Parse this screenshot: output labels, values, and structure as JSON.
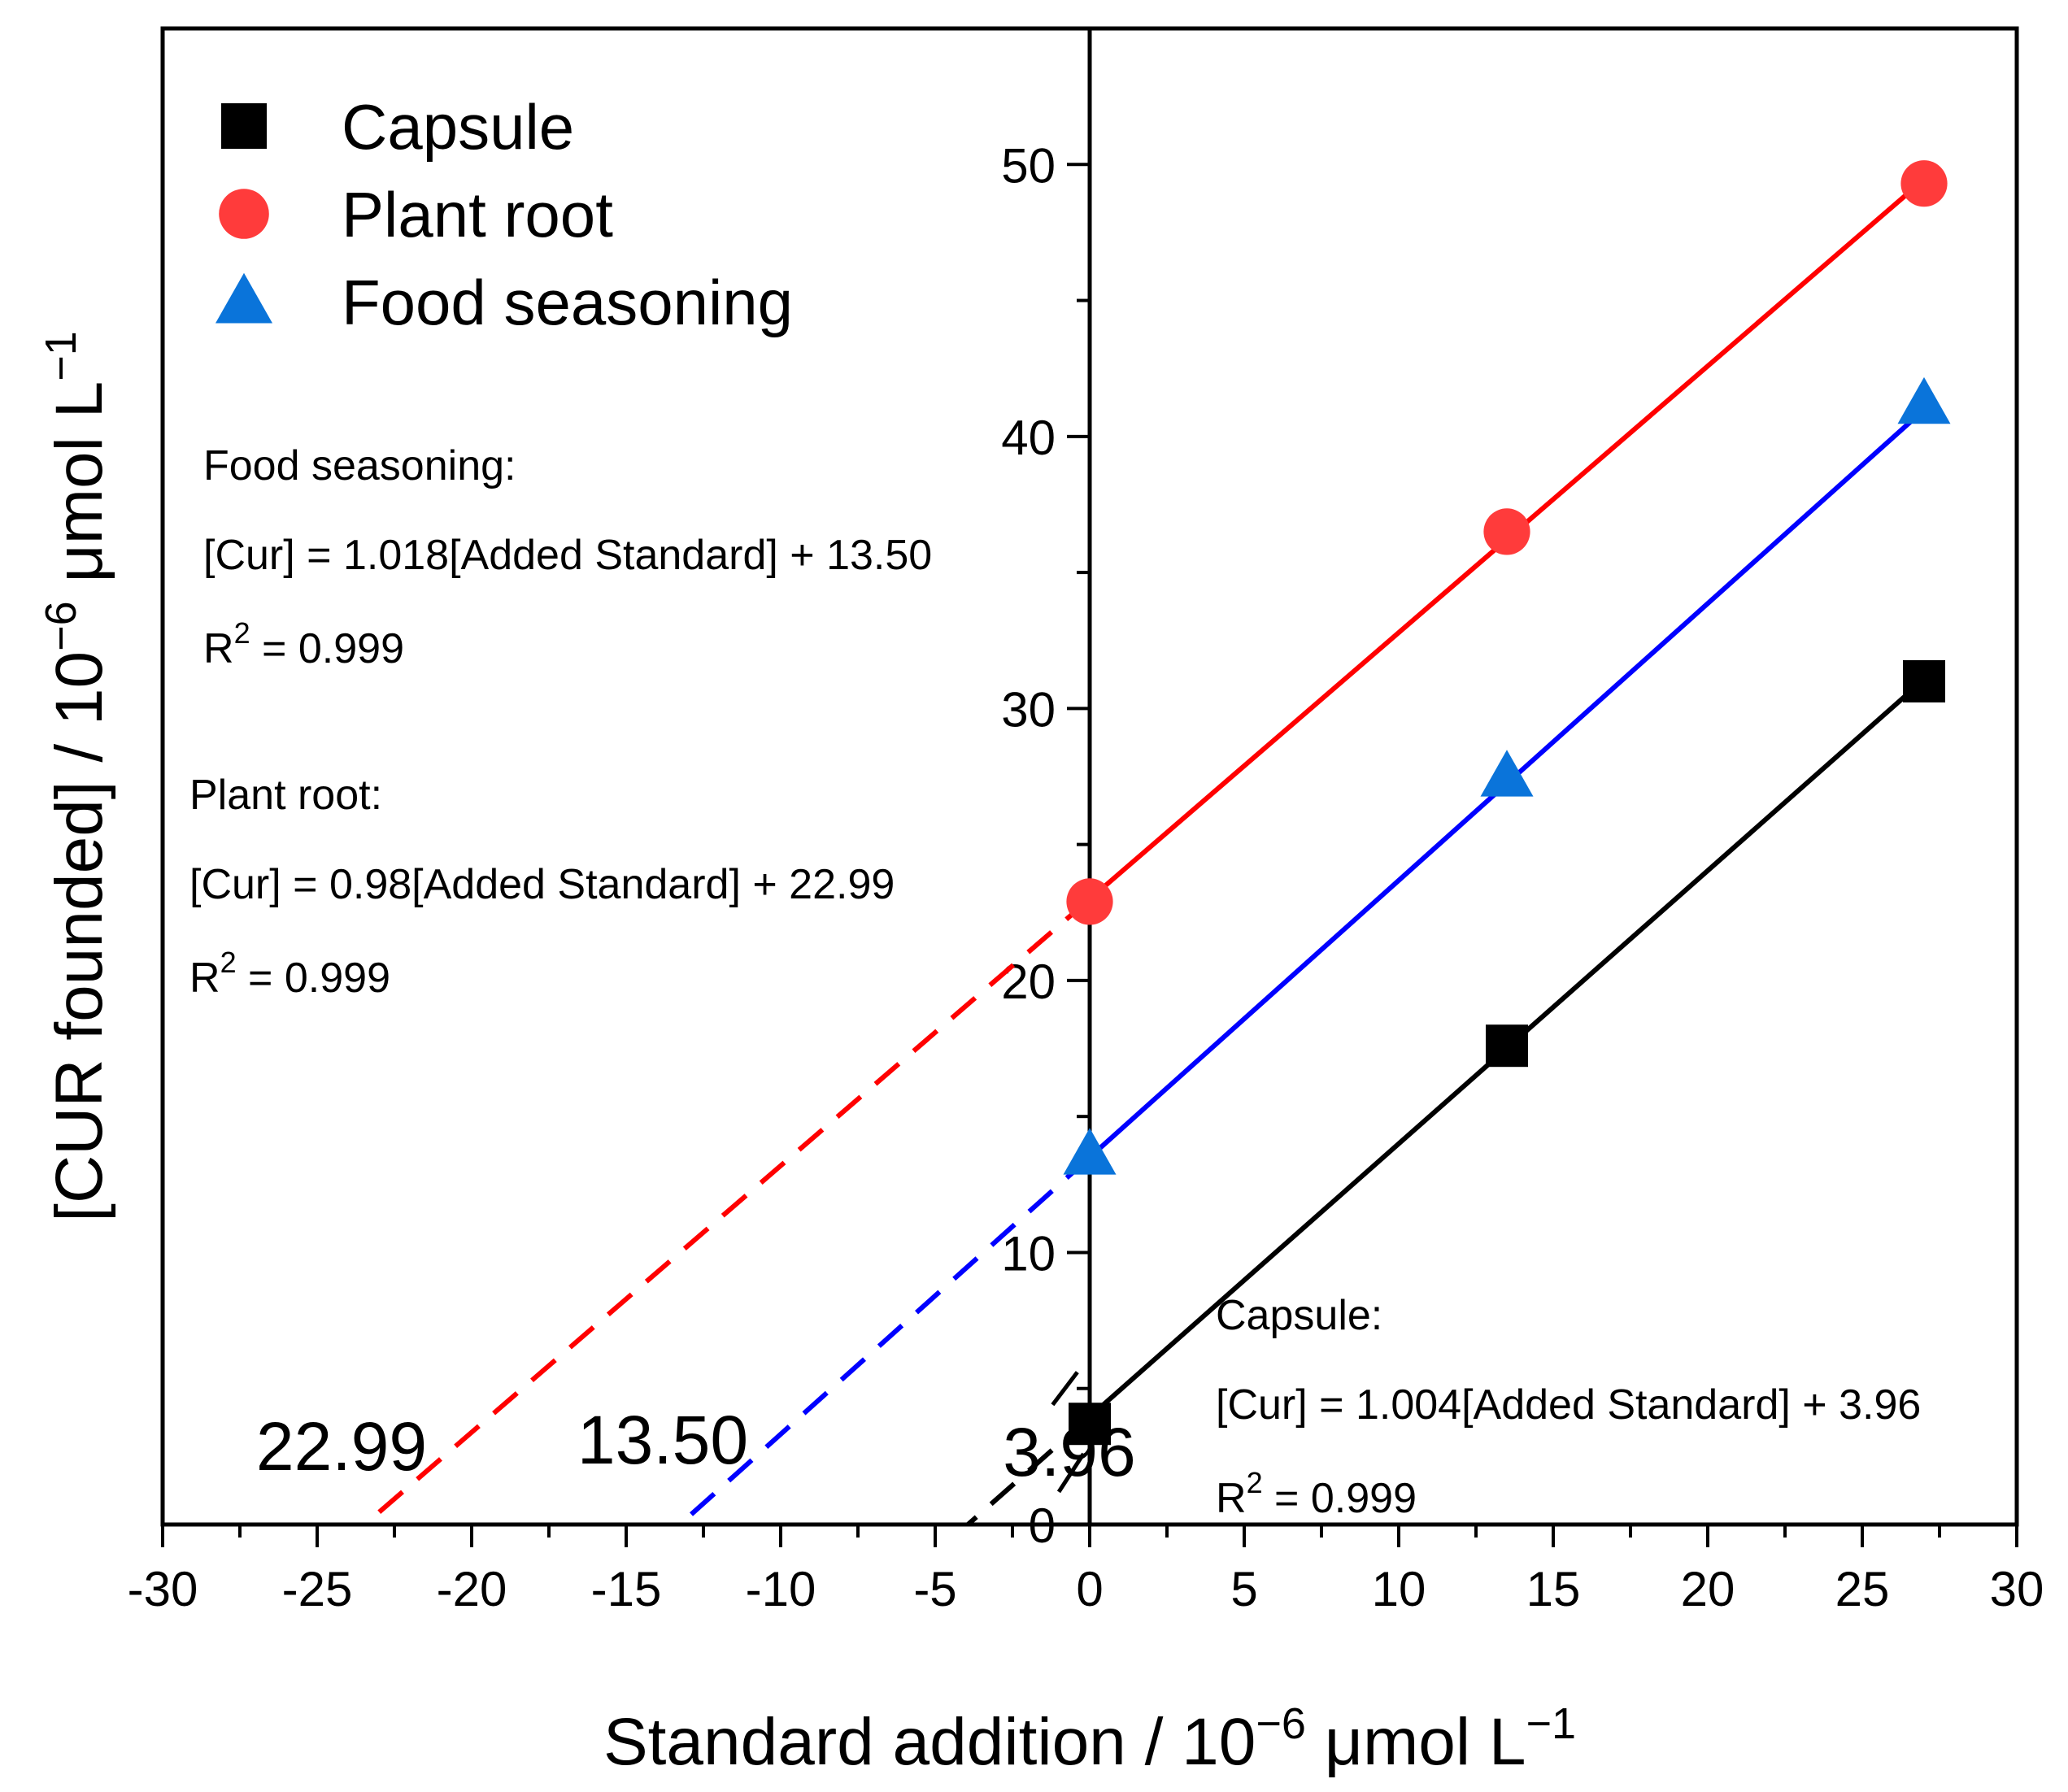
{
  "chart_data": {
    "type": "scatter",
    "xlabel": "Standard addition / 10",
    "xlabel_sup": "−6",
    "xlabel_unit": " μmol L",
    "xlabel_unit_sup": "−1",
    "ylabel": "[CUR founded] / 10",
    "ylabel_sup": "−6",
    "ylabel_unit": " μmol L",
    "ylabel_unit_sup": "−1",
    "xlim": [
      -30,
      30
    ],
    "ylim": [
      0,
      55
    ],
    "x_ticks": [
      -30,
      -25,
      -20,
      -15,
      -10,
      -5,
      0,
      5,
      10,
      15,
      20,
      25,
      30
    ],
    "x_tick_labels": [
      "-30",
      "-25",
      "-20",
      "-15",
      "-10",
      "-5",
      "0",
      "5",
      "10",
      "15",
      "20",
      "25",
      "30"
    ],
    "y_ticks": [
      0,
      10,
      20,
      30,
      40,
      50
    ],
    "y_tick_labels": [
      "0",
      "10",
      "20",
      "30",
      "40",
      "50"
    ],
    "grid": false,
    "legend_position": "top-left",
    "series": [
      {
        "name": "Capsule",
        "marker": "square",
        "color": "#000000",
        "line_color": "#000000",
        "x": [
          0,
          13.5,
          27
        ],
        "y": [
          3.7,
          17.6,
          31.0
        ],
        "fit": {
          "slope": 1.004,
          "intercept": 3.96
        },
        "extrapolate_to_x": -3.94,
        "intercept_label": "3.96",
        "equation": {
          "title": "Capsule:",
          "formula": "[Cur] = 1.004[Added Standard] + 3.96",
          "r2_prefix": "R",
          "r2_sup": "2",
          "r2_value": " = 0.999"
        }
      },
      {
        "name": "Plant root",
        "marker": "circle",
        "color": "#ff3b3b",
        "line_color": "#ff0000",
        "x": [
          0,
          13.5,
          27
        ],
        "y": [
          22.9,
          36.5,
          49.3
        ],
        "fit": {
          "slope": 0.98,
          "intercept": 22.99
        },
        "extrapolate_to_x": -23.46,
        "intercept_label": "22.99",
        "equation": {
          "title": "Plant root:",
          "formula": "[Cur] = 0.98[Added Standard] + 22.99",
          "r2_prefix": "R",
          "r2_sup": "2",
          "r2_value": " = 0.999"
        }
      },
      {
        "name": "Food seasoning",
        "marker": "triangle",
        "color": "#0a74da",
        "line_color": "#0000ff",
        "x": [
          0,
          13.5,
          27
        ],
        "y": [
          13.6,
          27.5,
          41.2
        ],
        "fit": {
          "slope": 1.018,
          "intercept": 13.5
        },
        "extrapolate_to_x": -13.26,
        "intercept_label": "13.50",
        "equation": {
          "title": "Food seasoning:",
          "formula": "[Cur] = 1.018[Added Standard] + 13.50",
          "r2_prefix": "R",
          "r2_sup": "2",
          "r2_value": " = 0.999"
        }
      }
    ]
  }
}
